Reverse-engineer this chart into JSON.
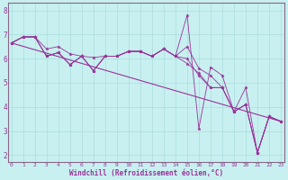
{
  "xlabel": "Windchill (Refroidissement éolien,°C)",
  "bg_color": "#c8f0f0",
  "line_color": "#993399",
  "grid_color": "#aadddd",
  "spine_color": "#886688",
  "x_ticks": [
    0,
    1,
    2,
    3,
    4,
    5,
    6,
    7,
    8,
    9,
    10,
    11,
    12,
    13,
    14,
    15,
    16,
    17,
    18,
    19,
    20,
    21,
    22,
    23
  ],
  "y_ticks": [
    2,
    3,
    4,
    5,
    6,
    7,
    8
  ],
  "xlim": [
    -0.3,
    23.3
  ],
  "ylim": [
    1.7,
    8.3
  ],
  "trend_line": [
    6.65,
    3.4
  ],
  "series": [
    [
      6.65,
      6.9,
      6.9,
      6.1,
      6.25,
      5.75,
      6.1,
      5.5,
      6.1,
      6.1,
      6.3,
      6.3,
      6.1,
      6.4,
      6.1,
      7.8,
      3.1,
      5.65,
      5.3,
      3.8,
      4.1,
      2.1,
      3.6,
      3.4
    ],
    [
      6.65,
      6.9,
      6.9,
      6.1,
      6.25,
      5.75,
      6.1,
      5.5,
      6.1,
      6.1,
      6.3,
      6.3,
      6.1,
      6.4,
      6.1,
      6.5,
      5.6,
      5.3,
      4.8,
      3.8,
      4.8,
      2.1,
      3.6,
      3.4
    ],
    [
      6.65,
      6.9,
      6.9,
      6.4,
      6.5,
      6.2,
      6.1,
      6.05,
      6.1,
      6.1,
      6.3,
      6.3,
      6.1,
      6.4,
      6.1,
      5.8,
      5.4,
      4.8,
      4.8,
      3.8,
      4.1,
      2.1,
      3.6,
      3.4
    ],
    [
      6.65,
      6.9,
      6.9,
      6.1,
      6.25,
      5.75,
      6.1,
      5.5,
      6.1,
      6.1,
      6.3,
      6.3,
      6.1,
      6.4,
      6.1,
      6.0,
      5.3,
      4.8,
      4.8,
      3.8,
      4.1,
      2.1,
      3.6,
      3.4
    ]
  ]
}
